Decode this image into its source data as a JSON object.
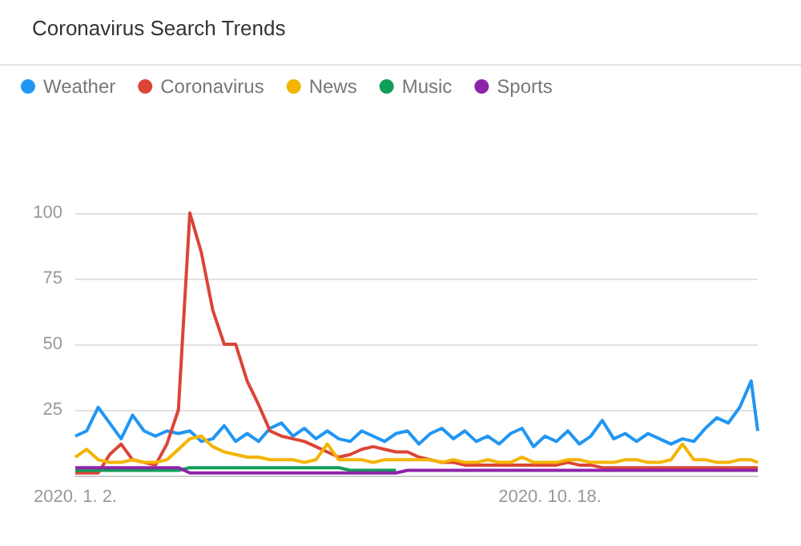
{
  "chart_data": {
    "type": "line",
    "title": "Coronavirus Search Trends",
    "x": [
      "2020-01-02",
      "2020-01-09",
      "2020-01-16",
      "2020-01-23",
      "2020-01-30",
      "2020-02-06",
      "2020-02-13",
      "2020-02-20",
      "2020-02-27",
      "2020-03-05",
      "2020-03-12",
      "2020-03-19",
      "2020-03-26",
      "2020-04-02",
      "2020-04-09",
      "2020-04-16",
      "2020-04-23",
      "2020-04-30",
      "2020-05-07",
      "2020-05-14",
      "2020-05-21",
      "2020-05-28",
      "2020-06-04",
      "2020-06-11",
      "2020-06-18",
      "2020-06-25",
      "2020-07-02",
      "2020-07-09",
      "2020-07-16",
      "2020-07-23",
      "2020-07-30",
      "2020-08-06",
      "2020-08-13",
      "2020-08-20",
      "2020-08-27",
      "2020-09-03",
      "2020-09-10",
      "2020-09-17",
      "2020-09-24",
      "2020-10-01",
      "2020-10-08",
      "2020-10-15",
      "2020-10-22",
      "2020-10-29",
      "2020-11-05",
      "2020-11-12",
      "2020-11-19",
      "2020-11-26",
      "2020-12-03",
      "2020-12-10",
      "2020-12-17",
      "2020-12-24",
      "2020-12-31",
      "2021-01-07",
      "2021-01-14",
      "2021-01-21",
      "2021-01-28",
      "2021-02-04",
      "2021-02-11",
      "2021-02-18",
      "2021-02-22"
    ],
    "series": [
      {
        "name": "Weather",
        "color": "#2196f3",
        "values": [
          15,
          17,
          26,
          20,
          14,
          23,
          17,
          15,
          17,
          16,
          17,
          13,
          14,
          19,
          13,
          16,
          13,
          18,
          20,
          15,
          18,
          14,
          17,
          14,
          13,
          17,
          15,
          13,
          16,
          17,
          12,
          16,
          18,
          14,
          17,
          13,
          15,
          12,
          16,
          18,
          11,
          15,
          13,
          17,
          12,
          15,
          21,
          14,
          16,
          13,
          16,
          14,
          12,
          14,
          13,
          18,
          22,
          20,
          26,
          36,
          17
        ]
      },
      {
        "name": "Coronavirus",
        "color": "#db4437",
        "values": [
          1,
          1,
          1,
          8,
          12,
          6,
          5,
          4,
          12,
          25,
          100,
          85,
          63,
          50,
          50,
          36,
          27,
          17,
          15,
          14,
          13,
          11,
          9,
          7,
          8,
          10,
          11,
          10,
          9,
          9,
          7,
          6,
          5,
          5,
          4,
          4,
          4,
          4,
          4,
          4,
          4,
          4,
          4,
          5,
          4,
          4,
          3,
          3,
          3,
          3,
          3,
          3,
          3,
          3,
          3,
          3,
          3,
          3,
          3,
          3,
          3
        ]
      },
      {
        "name": "News",
        "color": "#f4b400",
        "values": [
          7,
          10,
          6,
          5,
          5,
          6,
          5,
          5,
          6,
          10,
          14,
          15,
          11,
          9,
          8,
          7,
          7,
          6,
          6,
          6,
          5,
          6,
          12,
          6,
          6,
          6,
          5,
          6,
          6,
          6,
          6,
          6,
          5,
          6,
          5,
          5,
          6,
          5,
          5,
          7,
          5,
          5,
          5,
          6,
          6,
          5,
          5,
          5,
          6,
          6,
          5,
          5,
          6,
          12,
          6,
          6,
          5,
          5,
          6,
          6,
          5
        ]
      },
      {
        "name": "Music",
        "color": "#0f9d58",
        "values": [
          2,
          2,
          2,
          2,
          2,
          2,
          2,
          2,
          2,
          2,
          3,
          3,
          3,
          3,
          3,
          3,
          3,
          3,
          3,
          3,
          3,
          3,
          3,
          3,
          2,
          2,
          2,
          2,
          2,
          null,
          null,
          null,
          null,
          null,
          null,
          null,
          null,
          null,
          null,
          null,
          null,
          null,
          null,
          null,
          null,
          null,
          null,
          null,
          null,
          null,
          null,
          null,
          null,
          null,
          null,
          null,
          null,
          null,
          null,
          null,
          null
        ]
      },
      {
        "name": "Sports",
        "color": "#8e24aa",
        "values": [
          3,
          3,
          3,
          3,
          3,
          3,
          3,
          3,
          3,
          3,
          1,
          1,
          1,
          1,
          1,
          1,
          1,
          1,
          1,
          1,
          1,
          1,
          1,
          1,
          1,
          1,
          1,
          1,
          1,
          2,
          2,
          2,
          2,
          2,
          2,
          2,
          2,
          2,
          2,
          2,
          2,
          2,
          2,
          2,
          2,
          2,
          2,
          2,
          2,
          2,
          2,
          2,
          2,
          2,
          2,
          2,
          2,
          2,
          2,
          2,
          2
        ]
      }
    ],
    "xlim": [
      "2020-01-02",
      "2021-02-22"
    ],
    "xticks": [
      {
        "value": "2020-01-02",
        "label": "2020. 1. 2."
      },
      {
        "value": "2020-10-18",
        "label": "2020. 10. 18."
      }
    ],
    "ylim": [
      0,
      100
    ],
    "yticks": [
      25,
      50,
      75,
      100
    ],
    "grid": "y",
    "legend": "top left",
    "marker": "none",
    "line_style": "solid"
  }
}
